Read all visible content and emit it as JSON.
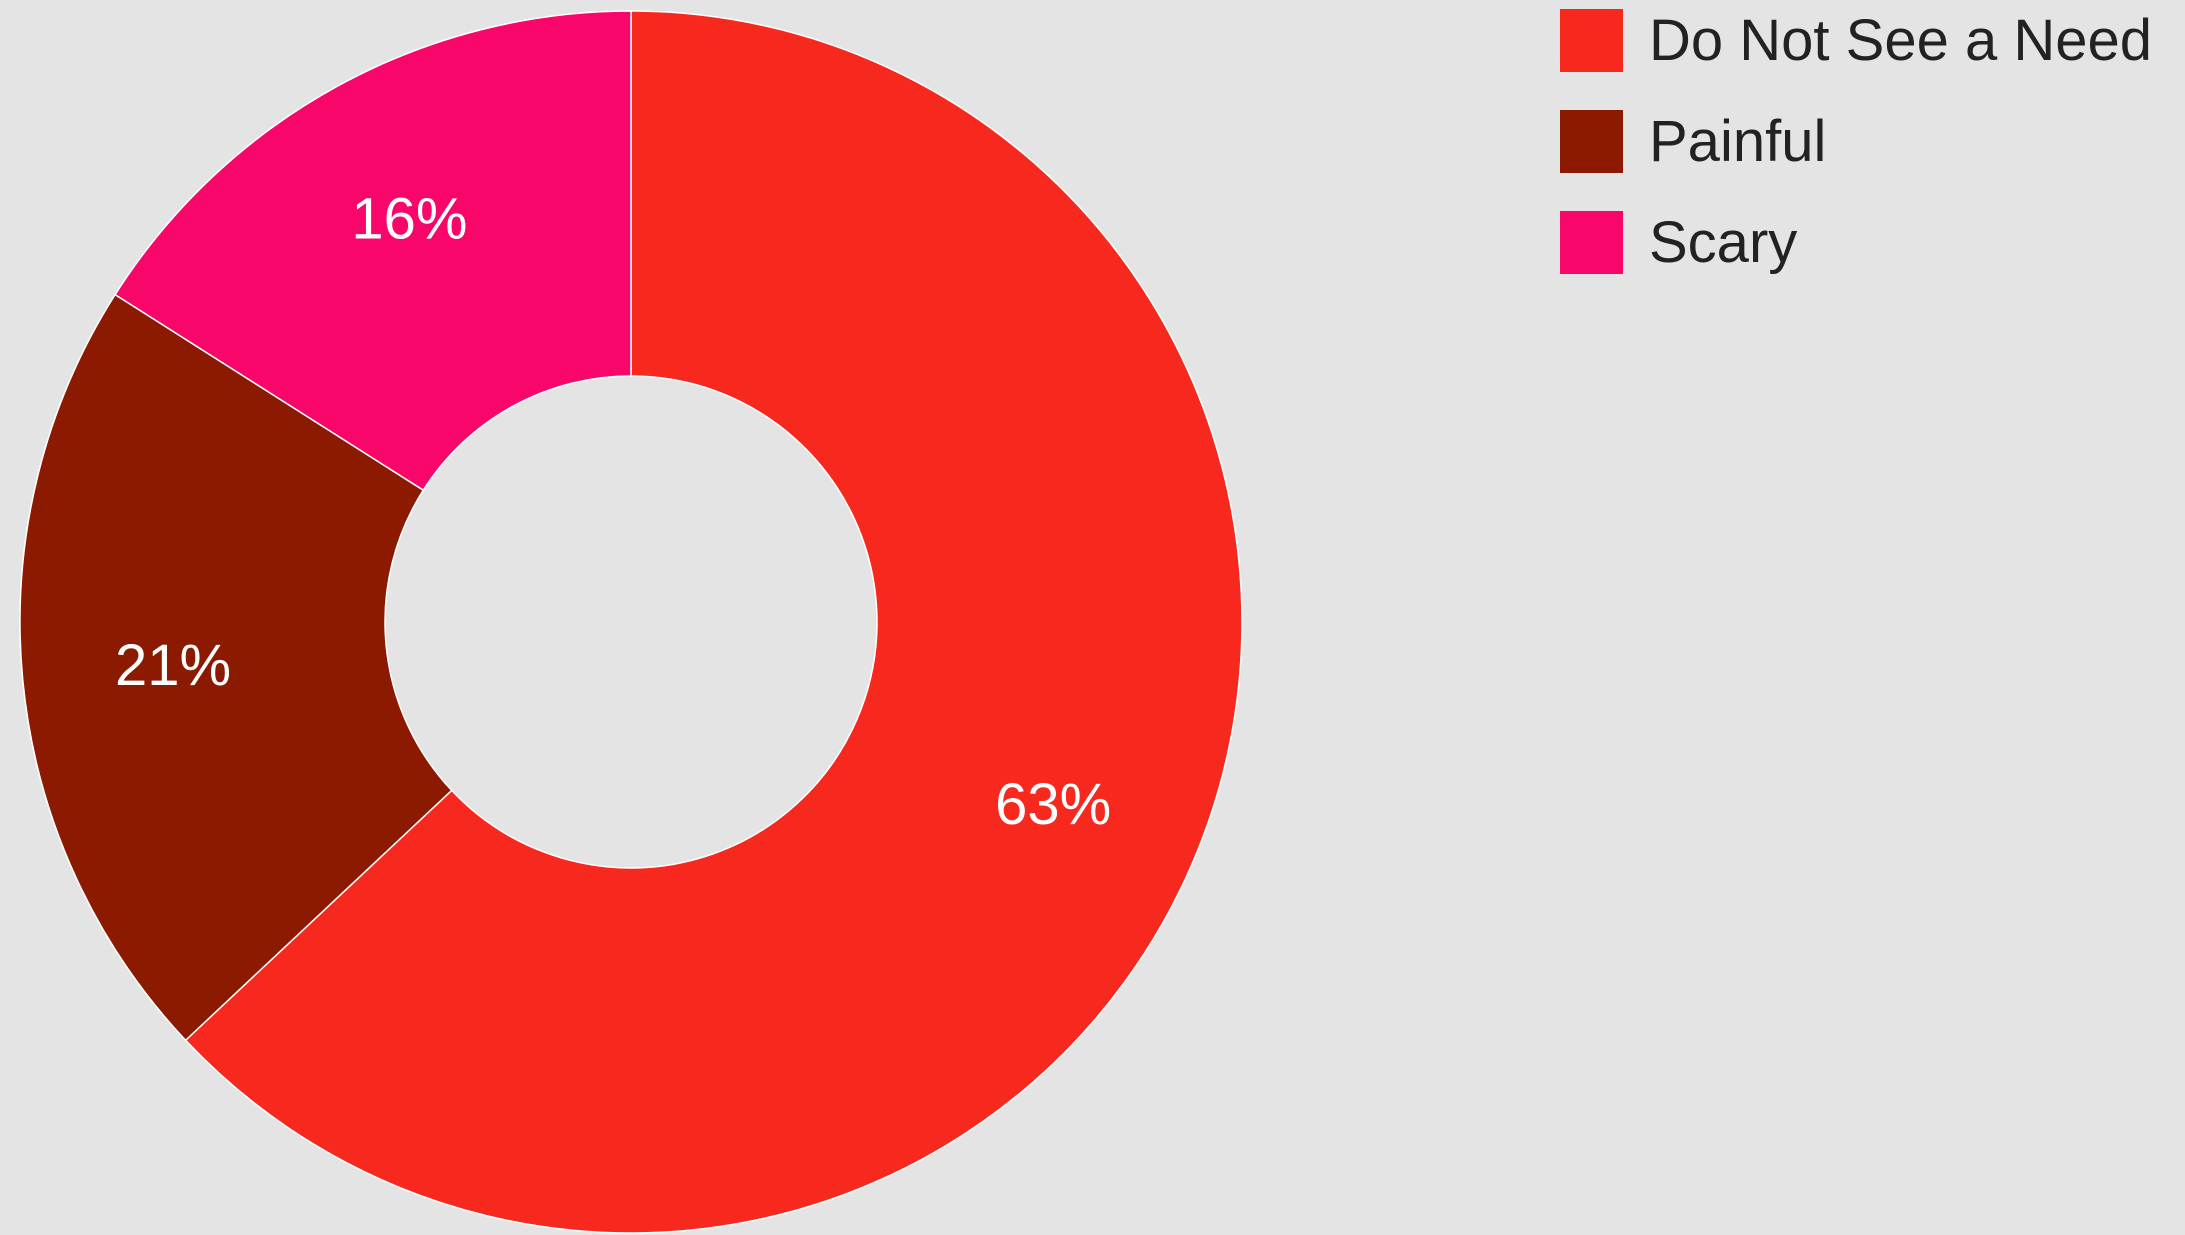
{
  "chart_data": {
    "type": "pie",
    "donut": true,
    "title": "",
    "categories": [
      "Do Not See a Need",
      "Painful",
      "Scary"
    ],
    "values": [
      63,
      21,
      16
    ],
    "labels": [
      "63%",
      "21%",
      "16%"
    ],
    "colors": [
      "#f7281e",
      "#8b1a00",
      "#f8066a"
    ],
    "background": "#e4e4e4",
    "legend_position": "top-right",
    "start_angle": "12 o'clock",
    "direction": "clockwise"
  }
}
